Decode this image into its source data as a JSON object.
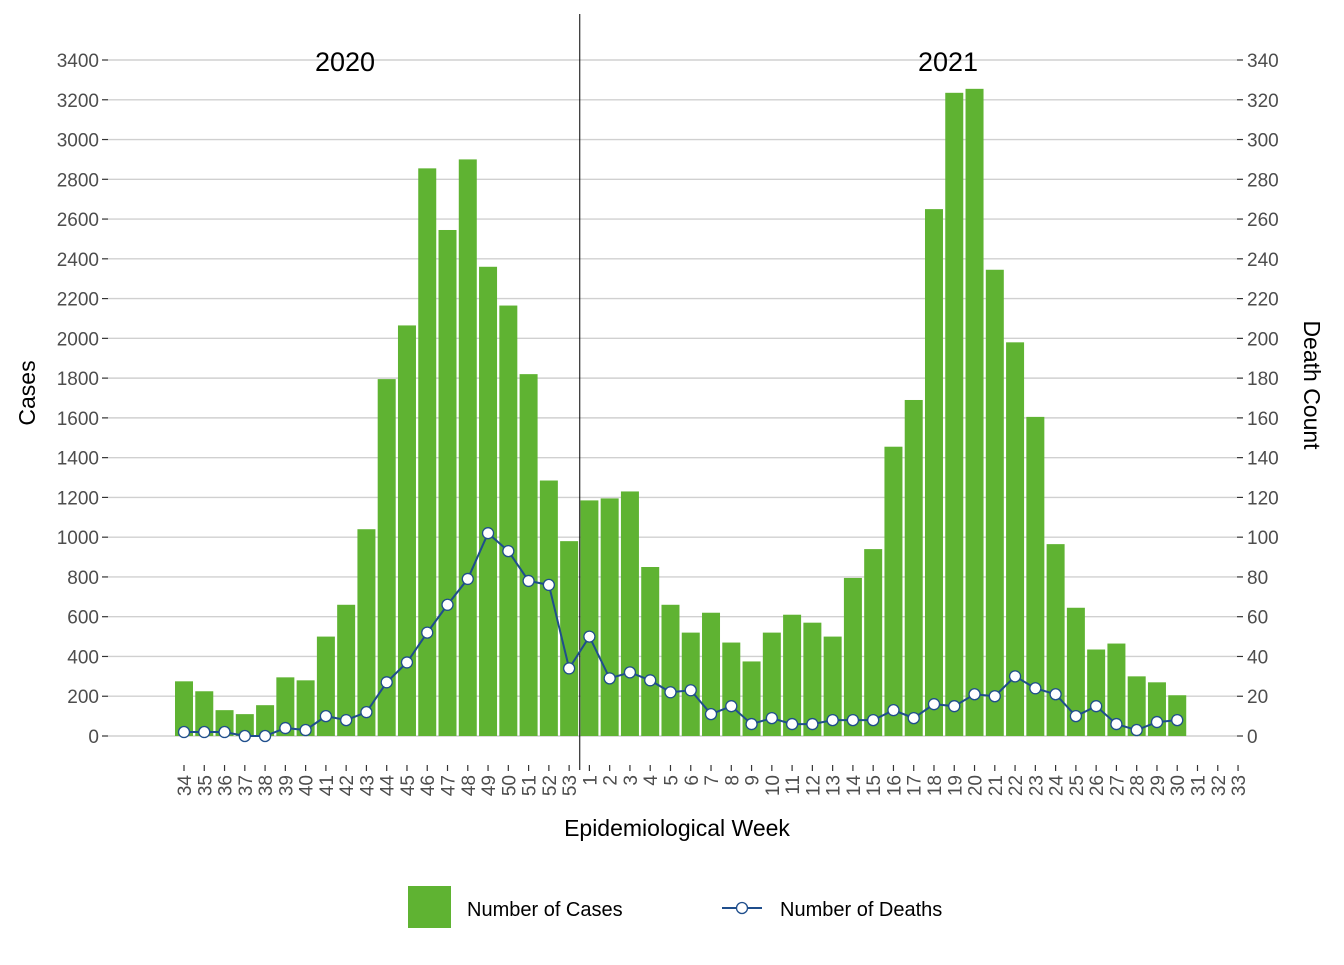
{
  "chart_data": {
    "type": "bar",
    "title": "",
    "xlabel": "Epidemiological Week",
    "ylabel": "Cases",
    "y2label": "Death Count",
    "ylim": [
      0,
      3400
    ],
    "y2lim": [
      0,
      340
    ],
    "y_ticks": [
      0,
      200,
      400,
      600,
      800,
      1000,
      1200,
      1400,
      1600,
      1800,
      2000,
      2200,
      2400,
      2600,
      2800,
      3000,
      3200,
      3400
    ],
    "y2_ticks": [
      0,
      20,
      40,
      60,
      80,
      100,
      120,
      140,
      160,
      180,
      200,
      220,
      240,
      260,
      280,
      300,
      320,
      340
    ],
    "categories": [
      "34",
      "35",
      "36",
      "37",
      "38",
      "39",
      "40",
      "41",
      "42",
      "43",
      "44",
      "45",
      "46",
      "47",
      "48",
      "49",
      "50",
      "51",
      "52",
      "53",
      "1",
      "2",
      "3",
      "4",
      "5",
      "6",
      "7",
      "8",
      "9",
      "10",
      "11",
      "12",
      "13",
      "14",
      "15",
      "16",
      "17",
      "18",
      "19",
      "20",
      "21",
      "22",
      "23",
      "24",
      "25",
      "26",
      "27",
      "28",
      "29",
      "30",
      "31",
      "32",
      "33"
    ],
    "annotations": [
      "2020",
      "2021"
    ],
    "divider_after_category": "53",
    "series": [
      {
        "name": "Number of Cases",
        "type": "bar",
        "color": "#5fb332",
        "values": [
          275,
          225,
          130,
          110,
          155,
          295,
          280,
          500,
          660,
          1040,
          1795,
          2065,
          2855,
          2545,
          2900,
          2360,
          2165,
          1820,
          1285,
          980,
          1185,
          1195,
          1230,
          850,
          660,
          520,
          620,
          470,
          375,
          520,
          610,
          570,
          500,
          795,
          940,
          1455,
          1690,
          2650,
          3235,
          3255,
          2345,
          1980,
          1605,
          965,
          645,
          435,
          465,
          300,
          270,
          205,
          null,
          null,
          null
        ]
      },
      {
        "name": "Number of Deaths",
        "type": "line",
        "axis": "right",
        "color": "#1f4e8c",
        "values": [
          2,
          2,
          2,
          0,
          0,
          4,
          3,
          10,
          8,
          12,
          27,
          37,
          52,
          66,
          79,
          102,
          93,
          78,
          76,
          34,
          50,
          29,
          32,
          28,
          22,
          23,
          11,
          15,
          6,
          9,
          6,
          6,
          8,
          8,
          8,
          13,
          9,
          16,
          15,
          21,
          20,
          30,
          24,
          21,
          10,
          15,
          6,
          3,
          7,
          8,
          null,
          null,
          null
        ]
      }
    ],
    "legend": [
      "Number of Cases",
      "Number of Deaths"
    ],
    "legend_position": "bottom",
    "grid": true
  }
}
